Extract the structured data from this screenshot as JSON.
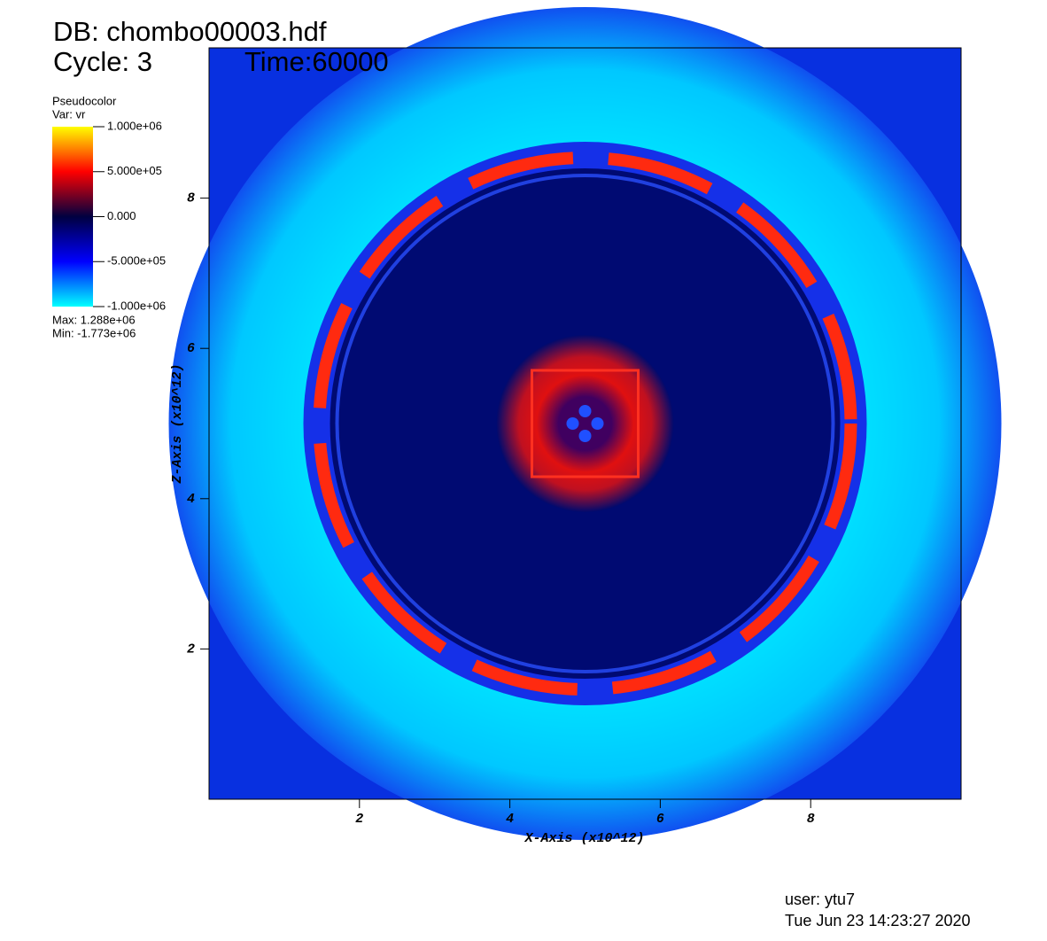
{
  "chart_data": {
    "type": "heatmap",
    "db_label": "DB: chombo00003.hdf",
    "cycle_label": "Cycle: 3",
    "time_label": "Time:60000",
    "x_label": "X-Axis  (x10^12)",
    "y_label": "Z-Axis  (x10^12)",
    "xlim": [
      0,
      10
    ],
    "ylim": [
      0,
      10
    ],
    "xticks": [
      2,
      4,
      6,
      8
    ],
    "yticks": [
      2,
      4,
      6,
      8
    ],
    "legend": {
      "title": "Pseudocolor",
      "var": "Var: vr",
      "clim": [
        -1000000,
        1000000
      ],
      "ticks": [
        {
          "value": 1000000,
          "label": "1.000e+06"
        },
        {
          "value": 500000,
          "label": "5.000e+05"
        },
        {
          "value": 0,
          "label": "0.000"
        },
        {
          "value": -500000,
          "label": "-5.000e+05"
        },
        {
          "value": -1000000,
          "label": "-1.000e+06"
        }
      ],
      "colormap": [
        "#00ffff",
        "#0000ff",
        "#000040",
        "#ff0000",
        "#ffff00"
      ],
      "max_text": "Max:  1.288e+06",
      "min_text": "Min: -1.773e+06"
    },
    "user": "user: ytu7",
    "date": "Tue Jun 23 14:23:27 2020"
  }
}
